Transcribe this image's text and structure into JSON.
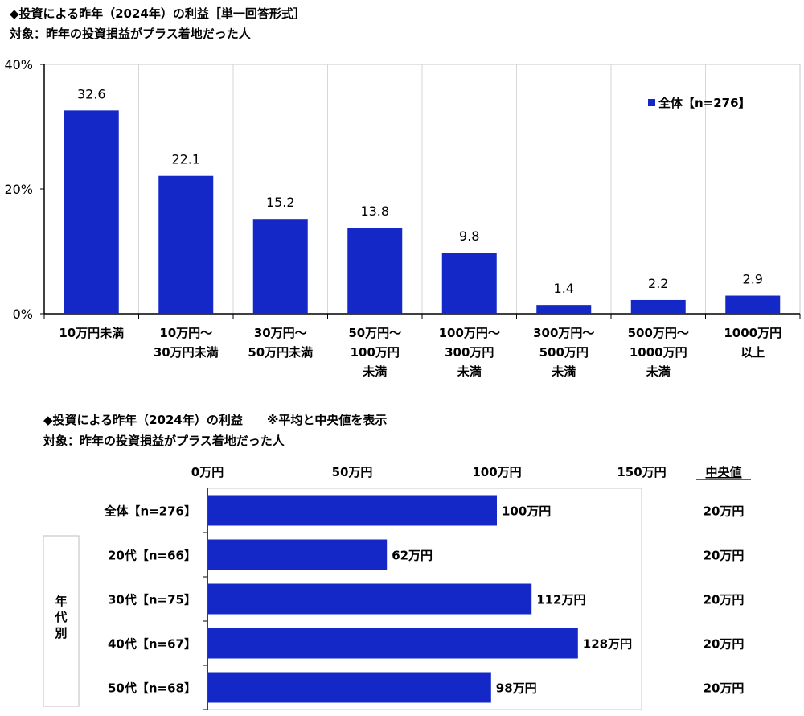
{
  "chart1": {
    "title": "◆投資による昨年（2024年）の利益［単一回答形式］",
    "subtitle": "対象：昨年の投資損益がプラス着地だった人"
  },
  "chart2": {
    "title": "◆投資による昨年（2024年）の利益　　※平均と中央値を表示",
    "subtitle": "対象：昨年の投資損益がプラス着地だった人"
  },
  "chart_data": [
    {
      "type": "bar",
      "title": "◆投資による昨年（2024年）の利益［単一回答形式］",
      "subtitle": "対象：昨年の投資損益がプラス着地だった人",
      "categories": [
        [
          "10万円未満"
        ],
        [
          "10万円～",
          "30万円未満"
        ],
        [
          "30万円～",
          "50万円未満"
        ],
        [
          "50万円～",
          "100万円",
          "未満"
        ],
        [
          "100万円～",
          "300万円",
          "未満"
        ],
        [
          "300万円～",
          "500万円",
          "未満"
        ],
        [
          "500万円～",
          "1000万円",
          "未満"
        ],
        [
          "1000万円",
          "以上"
        ]
      ],
      "series": [
        {
          "name": "全体【n=276】",
          "values": [
            32.6,
            22.1,
            15.2,
            13.8,
            9.8,
            1.4,
            2.2,
            2.9
          ],
          "color": "#1428c8"
        }
      ],
      "yticks": [
        "0%",
        "20%",
        "40%"
      ],
      "ylim": [
        0,
        40
      ],
      "grid": false,
      "legend": "top-right"
    },
    {
      "type": "bar",
      "orientation": "horizontal",
      "title": "◆投資による昨年（2024年）の利益　　※平均と中央値を表示",
      "subtitle": "対象：昨年の投資損益がプラス着地だった人",
      "categories": [
        "全体【n=276】",
        "20代【n=66】",
        "30代【n=75】",
        "40代【n=67】",
        "50代【n=68】"
      ],
      "values": [
        100,
        62,
        112,
        128,
        98
      ],
      "value_labels": [
        "100万円",
        "62万円",
        "112万円",
        "128万円",
        "98万円"
      ],
      "median_header": "中央値",
      "medians": [
        "20万円",
        "20万円",
        "20万円",
        "20万円",
        "20万円"
      ],
      "group_label": "年代別",
      "xticks": [
        "0万円",
        "50万円",
        "100万円",
        "150万円"
      ],
      "xlim": [
        0,
        150
      ],
      "color": "#1428c8"
    }
  ]
}
